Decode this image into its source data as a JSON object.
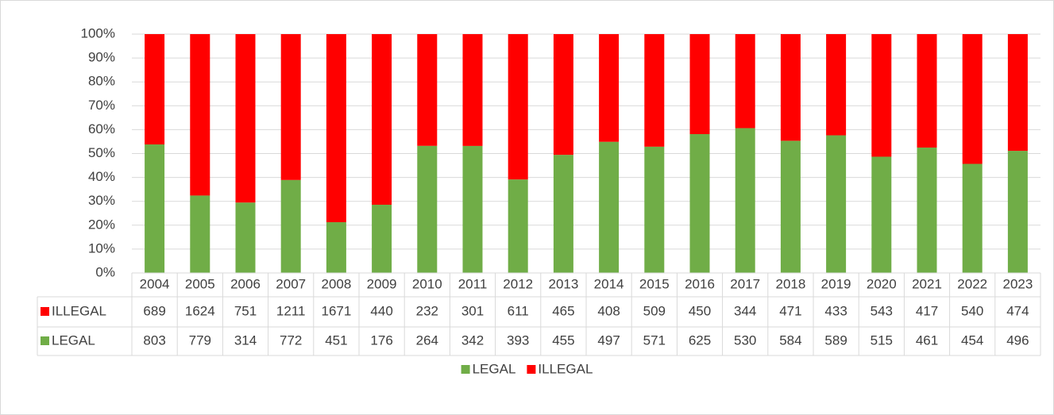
{
  "chart_data": {
    "type": "bar",
    "stacking": "percent",
    "categories": [
      "2004",
      "2005",
      "2006",
      "2007",
      "2008",
      "2009",
      "2010",
      "2011",
      "2012",
      "2013",
      "2014",
      "2015",
      "2016",
      "2017",
      "2018",
      "2019",
      "2020",
      "2021",
      "2022",
      "2023"
    ],
    "series": [
      {
        "name": "LEGAL",
        "color": "#70ad47",
        "values": [
          803,
          779,
          314,
          772,
          451,
          176,
          264,
          342,
          393,
          455,
          497,
          571,
          625,
          530,
          584,
          589,
          515,
          461,
          454,
          496
        ]
      },
      {
        "name": "ILLEGAL",
        "color": "#ff0000",
        "values": [
          689,
          1624,
          751,
          1211,
          1671,
          440,
          232,
          301,
          611,
          465,
          408,
          509,
          450,
          344,
          471,
          433,
          543,
          417,
          540,
          474
        ]
      }
    ],
    "ylim": [
      0,
      100
    ],
    "yticks": [
      {
        "value": 0,
        "label": "0%"
      },
      {
        "value": 10,
        "label": "10%"
      },
      {
        "value": 20,
        "label": "20%"
      },
      {
        "value": 30,
        "label": "30%"
      },
      {
        "value": 40,
        "label": "40%"
      },
      {
        "value": 50,
        "label": "50%"
      },
      {
        "value": 60,
        "label": "60%"
      },
      {
        "value": 70,
        "label": "70%"
      },
      {
        "value": 80,
        "label": "80%"
      },
      {
        "value": 90,
        "label": "90%"
      },
      {
        "value": 100,
        "label": "100%"
      }
    ],
    "grid": true,
    "legend": "bottom",
    "data_table": true
  }
}
